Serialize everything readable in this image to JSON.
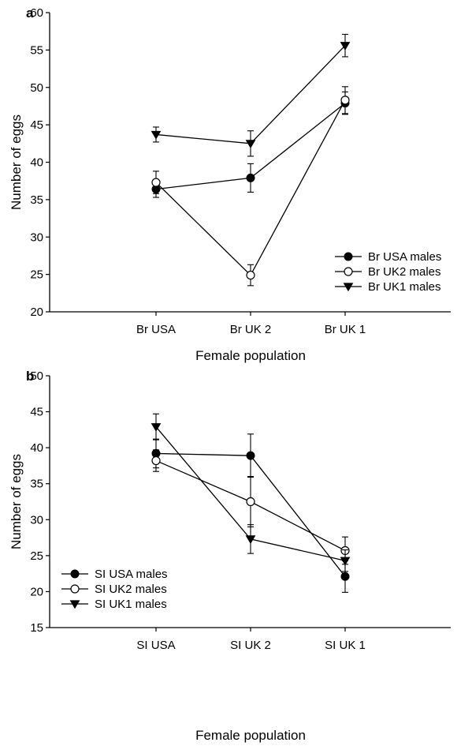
{
  "colors": {
    "ink": "#000000",
    "background": "#ffffff",
    "hollow_fill": "#ffffff"
  },
  "chart_data": [
    {
      "type": "line",
      "panel_label": "a",
      "title": "",
      "xlabel": "Female population",
      "ylabel": "Number of eggs",
      "categories": [
        "Br USA",
        "Br UK 2",
        "Br UK 1"
      ],
      "ylim": [
        20,
        60
      ],
      "yticks": [
        "20",
        "25",
        "30",
        "35",
        "40",
        "45",
        "50",
        "55",
        "60"
      ],
      "grid": false,
      "legend_position": "bottom-right",
      "series": [
        {
          "name": "Br USA males",
          "marker": "filled-circle",
          "values": [
            36.4,
            37.9,
            47.9
          ],
          "errors": [
            1.1,
            1.9,
            1.5
          ]
        },
        {
          "name": "Br UK2 males",
          "marker": "open-circle",
          "values": [
            37.3,
            24.9,
            48.3
          ],
          "errors": [
            1.5,
            1.4,
            1.8
          ]
        },
        {
          "name": "Br UK1 males",
          "marker": "filled-triangle-down",
          "values": [
            43.7,
            42.5,
            55.6
          ],
          "errors": [
            1.0,
            1.7,
            1.5
          ]
        }
      ]
    },
    {
      "type": "line",
      "panel_label": "b",
      "title": "",
      "xlabel": "Female population",
      "ylabel": "Number of eggs",
      "categories": [
        "SI USA",
        "SI UK 2",
        "SI UK 1"
      ],
      "ylim": [
        15,
        50
      ],
      "yticks": [
        "15",
        "20",
        "25",
        "30",
        "35",
        "40",
        "45",
        "50"
      ],
      "grid": false,
      "legend_position": "bottom-left",
      "series": [
        {
          "name": "SI USA males",
          "marker": "filled-circle",
          "values": [
            39.2,
            38.9,
            22.1
          ],
          "errors": [
            2.0,
            3.0,
            2.2
          ]
        },
        {
          "name": "SI UK2 males",
          "marker": "open-circle",
          "values": [
            38.2,
            32.5,
            25.7
          ],
          "errors": [
            1.5,
            3.5,
            1.9
          ]
        },
        {
          "name": "SI UK1 males",
          "marker": "filled-triangle-down",
          "values": [
            42.9,
            27.3,
            24.3
          ],
          "errors": [
            1.8,
            2.0,
            1.5
          ]
        }
      ]
    }
  ]
}
